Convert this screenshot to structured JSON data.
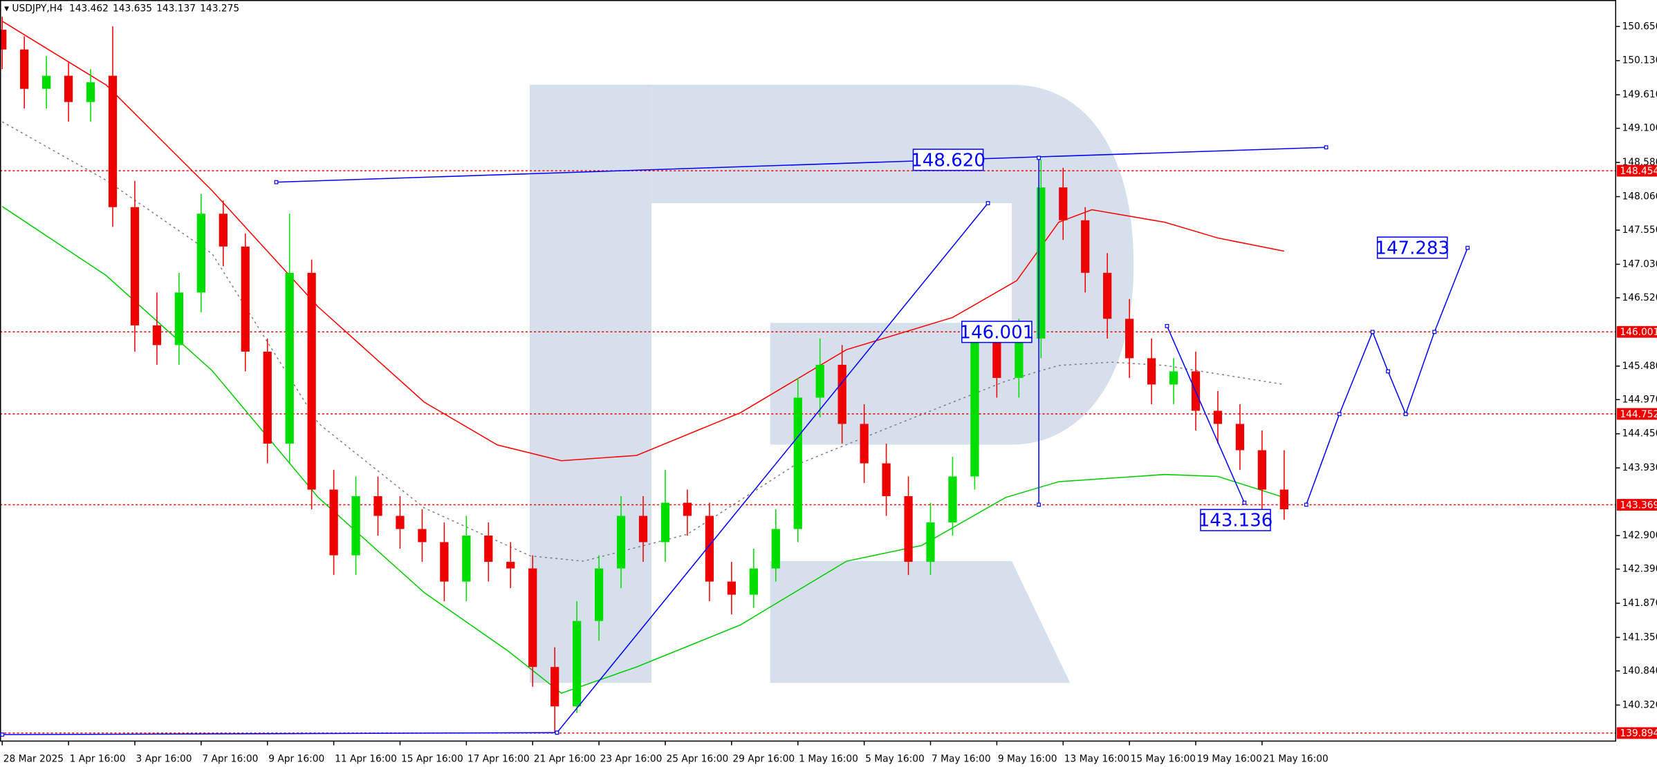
{
  "chart_data": {
    "type": "candlestick",
    "symbol": "USDJPY,H4",
    "header_values": [
      143.462,
      143.635,
      143.137,
      143.275
    ],
    "up_color": "#00dd00",
    "down_color": "#ee0000",
    "xlim": [
      -0.1,
      73
    ],
    "ylim": [
      139.772,
      151.053
    ],
    "yticks": [
      {
        "value": 150.65,
        "label": "150.650"
      },
      {
        "value": 150.13,
        "label": "150.130"
      },
      {
        "value": 149.61,
        "label": "149.610"
      },
      {
        "value": 149.1,
        "label": "149.100"
      },
      {
        "value": 148.58,
        "label": "148.580"
      },
      {
        "value": 148.06,
        "label": "148.060"
      },
      {
        "value": 147.55,
        "label": "147.550"
      },
      {
        "value": 147.03,
        "label": "147.030"
      },
      {
        "value": 146.52,
        "label": "146.520"
      },
      {
        "value": 145.48,
        "label": "145.480"
      },
      {
        "value": 144.97,
        "label": "144.970"
      },
      {
        "value": 144.45,
        "label": "144.450"
      },
      {
        "value": 143.93,
        "label": "143.930"
      },
      {
        "value": 142.9,
        "label": "142.900"
      },
      {
        "value": 142.39,
        "label": "142.390"
      },
      {
        "value": 141.87,
        "label": "141.870"
      },
      {
        "value": 141.35,
        "label": "141.350"
      },
      {
        "value": 140.84,
        "label": "140.840"
      },
      {
        "value": 140.32,
        "label": "140.320"
      }
    ],
    "categories": [
      "28 Mar 2025",
      null,
      null,
      "1 Apr 16:00",
      null,
      null,
      "3 Apr 16:00",
      null,
      null,
      "7 Apr 16:00",
      null,
      null,
      "9 Apr 16:00",
      null,
      null,
      "11 Apr 16:00",
      null,
      null,
      "15 Apr 16:00",
      null,
      null,
      "17 Apr 16:00",
      null,
      null,
      "21 Apr 16:00",
      null,
      null,
      "23 Apr 16:00",
      null,
      null,
      "25 Apr 16:00",
      null,
      null,
      "29 Apr 16:00",
      null,
      null,
      "1 May 16:00",
      null,
      null,
      "5 May 16:00",
      null,
      null,
      "7 May 16:00",
      null,
      null,
      "9 May 16:00",
      null,
      null,
      "13 May 16:00",
      null,
      null,
      "15 May 16:00",
      null,
      null,
      "19 May 16:00",
      null,
      null,
      "21 May 16:00",
      null
    ],
    "open": [
      150.6,
      150.3,
      149.7,
      149.9,
      149.5,
      149.9,
      147.9,
      146.1,
      145.8,
      146.6,
      147.8,
      147.3,
      145.7,
      144.3,
      146.9,
      143.6,
      142.6,
      143.5,
      143.2,
      143.0,
      142.8,
      142.2,
      142.9,
      142.5,
      142.4,
      140.9,
      140.3,
      141.6,
      142.4,
      143.2,
      142.8,
      143.4,
      143.2,
      142.2,
      142.0,
      142.4,
      143.0,
      145.0,
      145.5,
      144.6,
      144.0,
      143.5,
      142.5,
      143.1,
      143.8,
      145.9,
      145.3,
      145.9,
      148.2,
      147.7,
      146.9,
      146.2,
      145.6,
      145.2,
      145.4,
      144.8,
      144.6,
      144.2,
      143.6
    ],
    "high": [
      150.8,
      150.5,
      150.2,
      150.1,
      150.0,
      150.65,
      148.3,
      146.6,
      146.9,
      148.1,
      148.0,
      147.5,
      145.9,
      147.8,
      147.1,
      143.9,
      143.8,
      143.8,
      143.5,
      143.3,
      143.1,
      143.2,
      143.1,
      142.8,
      142.6,
      141.2,
      141.9,
      142.6,
      143.5,
      143.5,
      143.9,
      143.6,
      143.4,
      142.5,
      142.7,
      143.3,
      145.3,
      145.9,
      145.8,
      144.9,
      144.3,
      143.8,
      143.4,
      144.1,
      146.1,
      146.1,
      146.2,
      148.62,
      148.5,
      147.9,
      147.2,
      146.5,
      145.9,
      145.6,
      145.7,
      145.1,
      144.9,
      144.5,
      144.2
    ],
    "low": [
      150.0,
      149.4,
      149.4,
      149.2,
      149.2,
      147.6,
      145.7,
      145.5,
      145.5,
      146.3,
      147.0,
      145.4,
      144.0,
      144.0,
      143.3,
      142.3,
      142.3,
      142.9,
      142.7,
      142.5,
      141.9,
      141.9,
      142.2,
      142.1,
      140.6,
      139.9,
      140.2,
      141.3,
      142.1,
      142.5,
      142.5,
      142.9,
      141.9,
      141.7,
      141.8,
      142.2,
      142.8,
      144.7,
      144.3,
      143.7,
      143.2,
      142.3,
      142.3,
      142.9,
      143.6,
      145.0,
      145.0,
      145.6,
      147.4,
      146.6,
      145.9,
      145.3,
      144.9,
      144.9,
      144.5,
      144.3,
      143.9,
      143.3,
      143.14
    ],
    "close": [
      150.3,
      149.7,
      149.9,
      149.5,
      149.8,
      147.9,
      146.1,
      145.8,
      146.6,
      147.8,
      147.3,
      145.7,
      144.3,
      146.9,
      143.6,
      142.6,
      143.5,
      143.2,
      143.0,
      142.8,
      142.2,
      142.9,
      142.5,
      142.4,
      140.9,
      140.3,
      141.6,
      142.4,
      143.2,
      142.8,
      143.4,
      143.2,
      142.2,
      142.0,
      142.4,
      143.0,
      145.0,
      145.5,
      144.6,
      144.0,
      143.5,
      142.5,
      143.1,
      143.8,
      145.9,
      145.3,
      145.9,
      148.2,
      147.7,
      146.9,
      146.2,
      145.6,
      145.2,
      145.4,
      144.8,
      144.6,
      144.2,
      143.6,
      143.3
    ],
    "moving_averages": [
      {
        "color": "#ff0000",
        "dashed": false,
        "x": [
          0,
          4.7,
          9.5,
          14.3,
          19.1,
          22.4,
          25.3,
          28.7,
          33.4,
          38.2,
          43,
          45.9,
          47.8,
          49.3,
          52.6,
          55,
          58
        ],
        "values": [
          150.73,
          149.76,
          148.15,
          146.38,
          144.93,
          144.28,
          144.04,
          144.12,
          144.77,
          145.73,
          146.22,
          146.78,
          147.67,
          147.86,
          147.67,
          147.43,
          147.23
        ]
      },
      {
        "color": "#00cc00",
        "dashed": false,
        "x": [
          0,
          4.7,
          9.5,
          14.3,
          19.1,
          22.9,
          25.3,
          28.7,
          33.4,
          38.2,
          41.6,
          45.4,
          47.8,
          52.6,
          55,
          58
        ],
        "values": [
          147.91,
          146.86,
          145.41,
          143.48,
          142.03,
          141.14,
          140.5,
          140.9,
          141.54,
          142.51,
          142.75,
          143.48,
          143.72,
          143.83,
          143.8,
          143.48
        ]
      },
      {
        "color": "#808080",
        "dashed": true,
        "x": [
          0,
          4.7,
          9.5,
          14.3,
          19.1,
          23.9,
          26.3,
          31,
          35.8,
          40.6,
          45.4,
          47.8,
          50.2,
          52.6,
          58
        ],
        "values": [
          149.2,
          148.31,
          147.19,
          144.61,
          143.32,
          142.59,
          142.51,
          142.92,
          143.96,
          144.61,
          145.25,
          145.49,
          145.54,
          145.49,
          145.2
        ]
      }
    ],
    "levels": [
      148.454,
      146.001,
      144.752,
      143.369,
      139.894
    ],
    "level_color": "#ee0000",
    "drawing_color": "#0000ff",
    "drawings": [
      {
        "x": [
          0,
          25.1
        ],
        "values": [
          139.87,
          139.9
        ]
      },
      {
        "x": [
          12.4,
          59.9
        ],
        "values": [
          148.28,
          148.81
        ]
      },
      {
        "x": [
          25.1,
          44.6
        ],
        "values": [
          139.9,
          147.96
        ]
      },
      {
        "x": [
          46.9,
          46.9
        ],
        "values": [
          148.65,
          143.37
        ]
      },
      {
        "x": [
          52.7,
          56.2
        ],
        "values": [
          146.09,
          143.4
        ]
      },
      {
        "x": [
          59,
          60.5,
          62,
          62.7,
          63.5,
          64.8,
          66.3
        ],
        "values": [
          143.37,
          144.75,
          146.0,
          145.4,
          144.75,
          146.0,
          147.28
        ]
      }
    ],
    "annotations": [
      {
        "x": 42.8,
        "value": 148.62,
        "label": "148.620"
      },
      {
        "x": 45,
        "value": 146.001,
        "label": "146.001"
      },
      {
        "x": 55.8,
        "value": 143.136,
        "label": "143.136"
      },
      {
        "x": 63.8,
        "value": 147.283,
        "label": "147.283"
      }
    ]
  }
}
